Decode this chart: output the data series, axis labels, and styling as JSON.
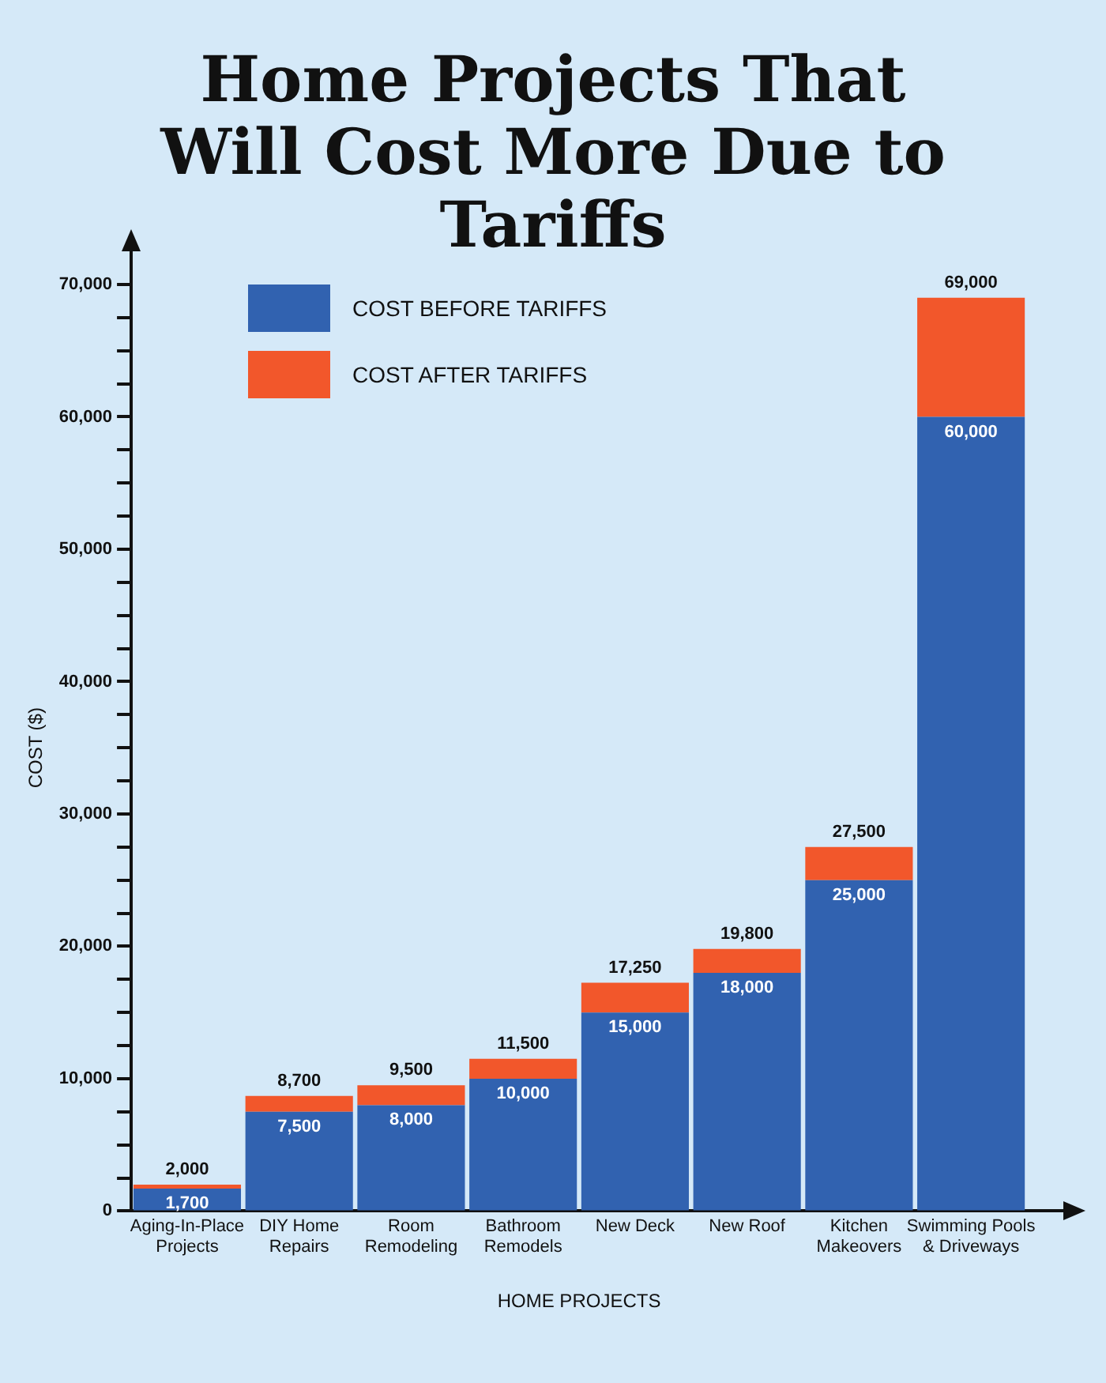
{
  "chart_data": {
    "type": "bar",
    "title": "Home Projects That Will Cost More Due to Tariffs",
    "xlabel": "HOME PROJECTS",
    "ylabel": "COST ($)",
    "categories": [
      "Aging-In-Place Projects",
      "DIY Home Repairs",
      "Room Remodeling",
      "Bathroom Remodels",
      "New Deck",
      "New Roof",
      "Kitchen Makeovers",
      "Swimming Pools & Driveways"
    ],
    "stacked": true,
    "series": [
      {
        "name": "COST BEFORE TARIFFS",
        "color": "#3162b0",
        "values": [
          1700,
          7500,
          8000,
          10000,
          15000,
          18000,
          25000,
          60000
        ],
        "value_labels": [
          "1,700",
          "7,500",
          "8,000",
          "10,000",
          "15,000",
          "18,000",
          "25,000",
          "60,000"
        ]
      },
      {
        "name": "COST AFTER TARIFFS",
        "color": "#f2572b",
        "values": [
          300,
          1200,
          1500,
          1500,
          2250,
          1800,
          2500,
          9000
        ]
      }
    ],
    "totals": [
      "2,000",
      "8,700",
      "9,500",
      "11,500",
      "17,250",
      "19,800",
      "27,500",
      "69,000"
    ],
    "ylim": [
      0,
      70000
    ],
    "yticks": [
      {
        "value": 0,
        "label": "0"
      },
      {
        "value": 2500,
        "label": null
      },
      {
        "value": 5000,
        "label": null
      },
      {
        "value": 7500,
        "label": null
      },
      {
        "value": 10000,
        "label": "10,000"
      },
      {
        "value": 12500,
        "label": null
      },
      {
        "value": 15000,
        "label": null
      },
      {
        "value": 17500,
        "label": null
      },
      {
        "value": 20000,
        "label": "20,000"
      },
      {
        "value": 22500,
        "label": null
      },
      {
        "value": 25000,
        "label": null
      },
      {
        "value": 27500,
        "label": null
      },
      {
        "value": 30000,
        "label": "30,000"
      },
      {
        "value": 32500,
        "label": null
      },
      {
        "value": 35000,
        "label": null
      },
      {
        "value": 37500,
        "label": null
      },
      {
        "value": 40000,
        "label": "40,000"
      },
      {
        "value": 42500,
        "label": null
      },
      {
        "value": 45000,
        "label": null
      },
      {
        "value": 47500,
        "label": null
      },
      {
        "value": 50000,
        "label": "50,000"
      },
      {
        "value": 52500,
        "label": null
      },
      {
        "value": 55000,
        "label": null
      },
      {
        "value": 57500,
        "label": null
      },
      {
        "value": 60000,
        "label": "60,000"
      },
      {
        "value": 62500,
        "label": null
      },
      {
        "value": 65000,
        "label": null
      },
      {
        "value": 67500,
        "label": null
      },
      {
        "value": 70000,
        "label": "70,000"
      }
    ],
    "grid": false,
    "legend": "top left"
  }
}
